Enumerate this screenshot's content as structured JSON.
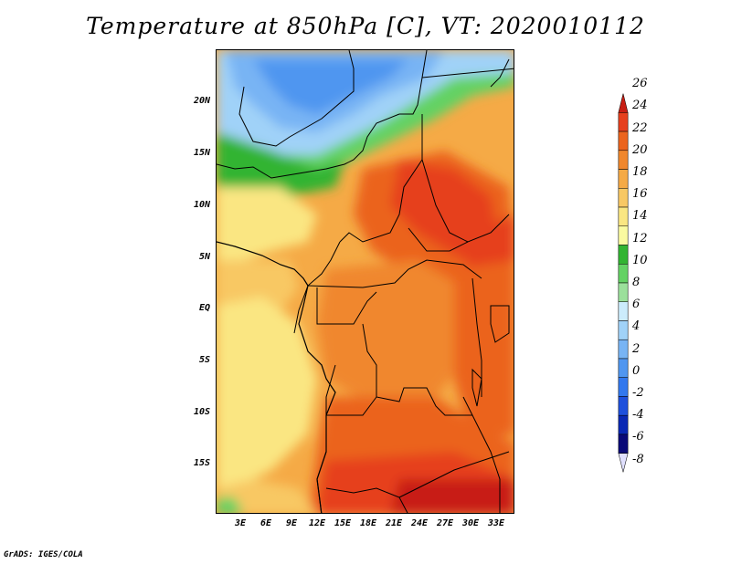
{
  "title": "Temperature at 850hPa [C], VT: 2020010112",
  "credit": "GrADS: IGES/COLA",
  "lat_labels": [
    "20N",
    "15N",
    "10N",
    "5N",
    "EQ",
    "5S",
    "10S",
    "15S"
  ],
  "lon_labels": [
    "3E",
    "6E",
    "9E",
    "12E",
    "15E",
    "18E",
    "21E",
    "24E",
    "27E",
    "30E",
    "33E"
  ],
  "colorbar": {
    "labels": [
      "26",
      "24",
      "22",
      "20",
      "18",
      "16",
      "14",
      "12",
      "10",
      "8",
      "6",
      "4",
      "2",
      "0",
      "-2",
      "-4",
      "-6",
      "-8"
    ],
    "colors": [
      "#e0e0ff",
      "#0a0a78",
      "#0a28b4",
      "#1e50dc",
      "#3278ee",
      "#5096f0",
      "#78b4f4",
      "#a0d2f8",
      "#ccecfc",
      "#9be09b",
      "#64d264",
      "#32b432",
      "#fafaa0",
      "#fae682",
      "#f8c864",
      "#f5aa46",
      "#f0872d",
      "#eb641e",
      "#e6401e",
      "#c81e14"
    ]
  },
  "map_data": {
    "region": "Central and Southern Africa",
    "variable": "Temperature at 850hPa",
    "units": "C",
    "valid_time": "2020010112",
    "lat_range": [
      "18S",
      "24N"
    ],
    "lon_range": [
      "0E",
      "35E"
    ]
  }
}
